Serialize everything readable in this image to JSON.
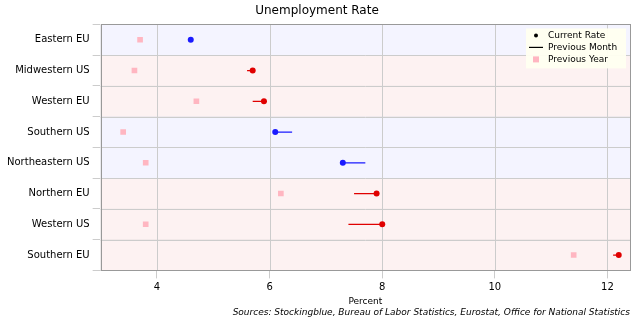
{
  "chart_data": {
    "type": "dot",
    "title": "Unemployment Rate",
    "x_label": "Percent",
    "annotation": "Sources: Stockingblue, Bureau of Labor Statistics, Eurostat, Office for National Statistics",
    "orientation": "horizontal",
    "grid": true,
    "legend": "upper right",
    "categories": [
      "Eastern EU",
      "Midwestern US",
      "Western EU",
      "Southern US",
      "Northeastern US",
      "Northern EU",
      "Western US",
      "Southern EU"
    ],
    "series": [
      {
        "name": "Current Rate",
        "marker": "circle",
        "color": "#000000",
        "values": [
          4.6,
          5.7,
          5.9,
          6.1,
          7.3,
          7.9,
          8.0,
          12.2
        ],
        "colors": [
          "#1a1aff",
          "#e00000",
          "#e00000",
          "#1a1aff",
          "#1a1aff",
          "#e00000",
          "#e00000",
          "#e00000"
        ]
      },
      {
        "name": "Previous Month",
        "marker": "line",
        "color": "#000000",
        "values": [
          4.6,
          5.6,
          5.7,
          6.4,
          7.7,
          7.5,
          7.4,
          12.1
        ],
        "colors": [
          "#1a1aff",
          "#e00000",
          "#e00000",
          "#1a1aff",
          "#1a1aff",
          "#e00000",
          "#e00000",
          "#e00000"
        ]
      },
      {
        "name": "Previous Year",
        "marker": "square",
        "color": "#ffb6c1",
        "values": [
          3.7,
          3.6,
          4.7,
          3.4,
          3.8,
          6.2,
          3.8,
          11.4
        ]
      }
    ],
    "xlim": [
      3.0,
      12.4
    ],
    "xticks": [
      4,
      6,
      8,
      10,
      12
    ]
  }
}
